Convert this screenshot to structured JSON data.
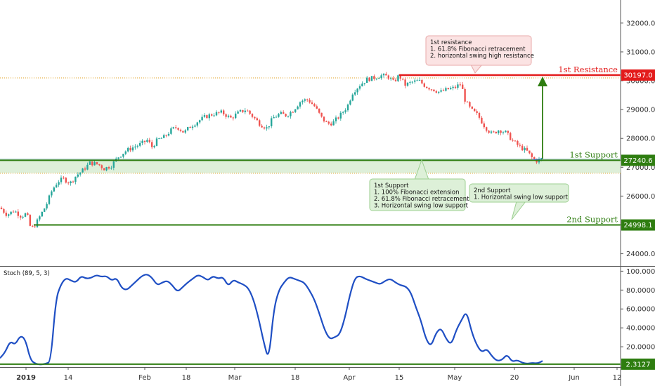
{
  "chart_data": [
    {
      "type": "candlestick",
      "y_ticks": [
        "32000.0",
        "31000.0",
        "30000.0",
        "29000.0",
        "28000.0",
        "27000.0",
        "26000.0",
        "25000.0",
        "24000.0"
      ],
      "ylim": [
        23600,
        32800
      ],
      "x_ticks": [
        "2019",
        "14",
        "Feb",
        "18",
        "Mar",
        "18",
        "Apr",
        "15",
        "May",
        "20",
        "Jun",
        "12"
      ],
      "path_keypoints": [
        [
          0,
          25600
        ],
        [
          10,
          25350
        ],
        [
          20,
          25500
        ],
        [
          30,
          25300
        ],
        [
          38,
          25400
        ],
        [
          44,
          24850
        ],
        [
          50,
          24998
        ],
        [
          58,
          25350
        ],
        [
          66,
          25700
        ],
        [
          74,
          26200
        ],
        [
          82,
          26500
        ],
        [
          90,
          26600
        ],
        [
          100,
          26450
        ],
        [
          108,
          26700
        ],
        [
          118,
          26900
        ],
        [
          128,
          27150
        ],
        [
          140,
          27100
        ],
        [
          148,
          26950
        ],
        [
          158,
          27050
        ],
        [
          168,
          27350
        ],
        [
          178,
          27550
        ],
        [
          190,
          27700
        ],
        [
          200,
          27800
        ],
        [
          210,
          27950
        ],
        [
          216,
          27700
        ],
        [
          224,
          27950
        ],
        [
          234,
          28050
        ],
        [
          244,
          28300
        ],
        [
          252,
          28400
        ],
        [
          262,
          28200
        ],
        [
          270,
          28400
        ],
        [
          282,
          28600
        ],
        [
          292,
          28750
        ],
        [
          304,
          28850
        ],
        [
          316,
          28900
        ],
        [
          328,
          28700
        ],
        [
          340,
          28900
        ],
        [
          350,
          29000
        ],
        [
          360,
          28750
        ],
        [
          370,
          28500
        ],
        [
          380,
          28350
        ],
        [
          388,
          28700
        ],
        [
          398,
          28850
        ],
        [
          408,
          28800
        ],
        [
          418,
          29000
        ],
        [
          428,
          29300
        ],
        [
          438,
          29350
        ],
        [
          448,
          29100
        ],
        [
          458,
          28700
        ],
        [
          466,
          28500
        ],
        [
          474,
          28550
        ],
        [
          484,
          28800
        ],
        [
          494,
          29100
        ],
        [
          502,
          29600
        ],
        [
          512,
          29850
        ],
        [
          522,
          30050
        ],
        [
          532,
          30100
        ],
        [
          542,
          30180
        ],
        [
          552,
          30150
        ],
        [
          560,
          29950
        ],
        [
          568,
          30190
        ],
        [
          576,
          29850
        ],
        [
          586,
          29950
        ],
        [
          596,
          30000
        ],
        [
          606,
          29800
        ],
        [
          616,
          29700
        ],
        [
          626,
          29600
        ],
        [
          636,
          29700
        ],
        [
          646,
          29750
        ],
        [
          656,
          29900
        ],
        [
          662,
          29300
        ],
        [
          670,
          29000
        ],
        [
          680,
          28800
        ],
        [
          690,
          28400
        ],
        [
          700,
          28150
        ],
        [
          710,
          28300
        ],
        [
          720,
          28200
        ],
        [
          730,
          27900
        ],
        [
          740,
          27700
        ],
        [
          750,
          27550
        ],
        [
          758,
          27300
        ],
        [
          763,
          27220
        ],
        [
          768,
          27260
        ],
        [
          772,
          27300
        ]
      ]
    },
    {
      "type": "line",
      "y_ticks": [
        "100.0000",
        "80.0000",
        "60.0000",
        "40.0000",
        "20.0000"
      ],
      "ylim": [
        0,
        104
      ],
      "values": [
        8,
        14,
        26,
        22,
        32,
        28,
        6,
        2,
        1,
        2,
        4,
        70,
        86,
        93,
        90,
        88,
        95,
        92,
        93,
        96,
        94,
        95,
        90,
        93,
        82,
        80,
        85,
        90,
        95,
        97,
        93,
        85,
        88,
        90,
        85,
        78,
        83,
        88,
        92,
        96,
        94,
        90,
        95,
        92,
        94,
        84,
        91,
        88,
        86,
        82,
        70,
        50,
        25,
        5,
        60,
        80,
        88,
        94,
        92,
        90,
        88,
        80,
        70,
        55,
        38,
        28,
        30,
        33,
        50,
        75,
        93,
        95,
        92,
        90,
        88,
        86,
        90,
        92,
        88,
        85,
        84,
        78,
        62,
        48,
        28,
        20,
        35,
        40,
        28,
        22,
        38,
        48,
        58,
        36,
        22,
        14,
        18,
        10,
        5,
        6,
        12,
        4,
        6,
        3,
        2,
        3,
        2.3,
        5
      ]
    }
  ],
  "title": "Stoch (89, 5, 3)",
  "levels": {
    "resistance": {
      "name": "1st Resistance",
      "value": "30197.0"
    },
    "support1": {
      "name": "1st Support",
      "value": "27240.6"
    },
    "support2": {
      "name": "2nd Support",
      "value": "24998.1"
    },
    "stoch": {
      "value": "2.3127"
    }
  },
  "notes": {
    "resistance": [
      "1st resistance",
      "1. 61.8% Fibonacci retracement",
      "2. horizontal swing high resistance"
    ],
    "support1": [
      "1st Support",
      "1. 100% Fibonacci extension",
      "2. 61.8% Fibonacci retracement",
      "3. Horizontal swing low support"
    ],
    "support2": [
      "2nd Support",
      "1.  Horizontal swing low support"
    ]
  },
  "colors": {
    "up": "#26a69a",
    "down": "#ef5350",
    "resistance": "#e31b1b",
    "support": "#2e7d10",
    "stoch": "#1f4fc4"
  }
}
